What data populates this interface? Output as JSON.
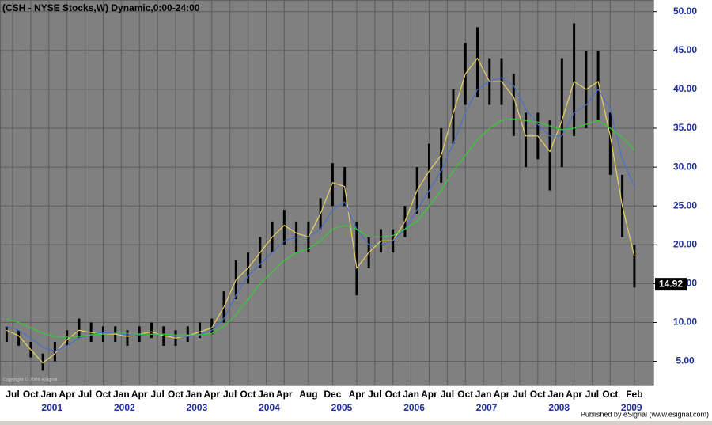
{
  "chart_data": {
    "type": "ohlc",
    "title": "(CSH - NYSE Stocks,W) Dynamic,0:00-24:00",
    "copyright": "Copyright © 2006 eSignal.",
    "footer": "Published by eSignal (www.esignal.com)",
    "x": [
      "2000-06",
      "2000-08",
      "2000-10",
      "2000-12",
      "2001-02",
      "2001-04",
      "2001-06",
      "2001-08",
      "2001-10",
      "2001-12",
      "2002-02",
      "2002-04",
      "2002-06",
      "2002-08",
      "2002-10",
      "2002-12",
      "2003-02",
      "2003-04",
      "2003-06",
      "2003-08",
      "2003-10",
      "2003-12",
      "2004-02",
      "2004-04",
      "2004-06",
      "2004-08",
      "2004-10",
      "2004-12",
      "2005-02",
      "2005-04",
      "2005-06",
      "2005-08",
      "2005-10",
      "2005-12",
      "2006-02",
      "2006-04",
      "2006-06",
      "2006-08",
      "2006-10",
      "2006-12",
      "2007-02",
      "2007-04",
      "2007-06",
      "2007-08",
      "2007-10",
      "2007-12",
      "2008-02",
      "2008-04",
      "2008-06",
      "2008-08",
      "2008-10",
      "2008-12",
      "2009-02"
    ],
    "low": [
      7.5,
      7,
      5.5,
      3.8,
      5,
      7,
      8,
      7.5,
      7.5,
      7.5,
      7,
      7.5,
      8,
      7,
      7,
      7.5,
      8,
      8.5,
      10,
      13,
      15,
      17,
      19,
      20,
      19,
      19,
      22,
      25,
      25,
      13.5,
      17,
      19,
      19,
      21,
      24,
      26,
      28,
      33,
      38,
      39,
      38,
      38,
      34,
      30,
      31,
      27,
      30,
      34,
      35,
      36,
      29,
      21,
      14.5
    ],
    "high": [
      9.5,
      9,
      7.5,
      6,
      7.5,
      9,
      10.5,
      10,
      9.5,
      9.5,
      9,
      9.5,
      10,
      9.5,
      9,
      9.5,
      10,
      10.5,
      14,
      18,
      19,
      21,
      23,
      24.5,
      23,
      23,
      26,
      30.5,
      30,
      23,
      21,
      22,
      22,
      25,
      30,
      33,
      35,
      40,
      46,
      48,
      44,
      44,
      42,
      37,
      37,
      36,
      44,
      48.5,
      45,
      45,
      37,
      29,
      20
    ],
    "bar_color": "#000000",
    "series": [
      {
        "color": "#e8d060",
        "values": [
          9,
          8.3,
          6.5,
          4.8,
          6,
          7.8,
          9,
          8.7,
          8.5,
          8.5,
          8.2,
          8.5,
          8.8,
          8.3,
          8,
          8.3,
          8.8,
          9.3,
          12,
          15.5,
          17,
          19,
          21,
          22.5,
          21.5,
          21,
          24,
          28,
          27.5,
          17,
          19,
          20.5,
          20.5,
          23,
          27,
          29.5,
          31.5,
          37,
          42,
          44,
          41,
          41,
          39,
          34,
          34,
          32,
          36,
          41,
          40,
          41,
          34,
          25,
          18.5
        ]
      },
      {
        "color": "#4a6fc8",
        "values": [
          9.5,
          9,
          8,
          6.8,
          6.3,
          7,
          8,
          8.5,
          8.7,
          8.6,
          8.4,
          8.4,
          8.5,
          8.5,
          8.2,
          8.2,
          8.5,
          9,
          10.5,
          13.5,
          16,
          17.5,
          19,
          20.5,
          21,
          21,
          22,
          24.5,
          25.5,
          22,
          20,
          20,
          20.5,
          22,
          24.5,
          27,
          29.5,
          33,
          37,
          40,
          41,
          41.5,
          40.5,
          37.5,
          35.5,
          34,
          34,
          37,
          38,
          40,
          37.5,
          31,
          27.5
        ]
      },
      {
        "color": "#30d030",
        "values": [
          10.5,
          10,
          9.3,
          8.6,
          8.2,
          8.1,
          8.2,
          8.4,
          8.5,
          8.6,
          8.6,
          8.5,
          8.5,
          8.5,
          8.4,
          8.4,
          8.4,
          8.6,
          9.5,
          11,
          13,
          15,
          16.5,
          18,
          19,
          19.5,
          20.5,
          22,
          22.5,
          22,
          21,
          21,
          21.2,
          22,
          23,
          25,
          27,
          29.5,
          31.5,
          33.5,
          35,
          36,
          36.2,
          36,
          35.8,
          35.3,
          34.8,
          35,
          35.5,
          36,
          35,
          33.8,
          32.2
        ]
      }
    ],
    "last_price": 14.92,
    "ylim": [
      1.9,
      51.5
    ],
    "yticks": [
      {
        "value": 5,
        "label": "5.00"
      },
      {
        "value": 10,
        "label": "10.00"
      },
      {
        "value": 15,
        "label": "15.00"
      },
      {
        "value": 20,
        "label": "20.00"
      },
      {
        "value": 25,
        "label": "25.00"
      },
      {
        "value": 30,
        "label": "30.00"
      },
      {
        "value": 35,
        "label": "35.00"
      },
      {
        "value": 40,
        "label": "40.00"
      },
      {
        "value": 45,
        "label": "45.00"
      },
      {
        "value": 50,
        "label": "50.00"
      }
    ],
    "xticks": [
      {
        "value": "2000-07",
        "label": "Jul"
      },
      {
        "value": "2000-10",
        "label": "Oct"
      },
      {
        "value": "2001-01",
        "label": "Jan"
      },
      {
        "value": "2001-04",
        "label": "Apr"
      },
      {
        "value": "2001-07",
        "label": "Jul"
      },
      {
        "value": "2001-10",
        "label": "Oct"
      },
      {
        "value": "2002-01",
        "label": "Jan"
      },
      {
        "value": "2002-04",
        "label": "Apr"
      },
      {
        "value": "2002-07",
        "label": "Jul"
      },
      {
        "value": "2002-10",
        "label": "Oct"
      },
      {
        "value": "2003-01",
        "label": "Jan"
      },
      {
        "value": "2003-04",
        "label": "Apr"
      },
      {
        "value": "2003-07",
        "label": "Jul"
      },
      {
        "value": "2003-10",
        "label": "Oct"
      },
      {
        "value": "2004-01",
        "label": "Jan"
      },
      {
        "value": "2004-04",
        "label": "Apr"
      },
      {
        "value": "2004-08",
        "label": "Aug"
      },
      {
        "value": "2004-12",
        "label": "Dec"
      },
      {
        "value": "2005-04",
        "label": "Apr"
      },
      {
        "value": "2005-07",
        "label": "Jul"
      },
      {
        "value": "2005-10",
        "label": "Oct"
      },
      {
        "value": "2006-01",
        "label": "Jan"
      },
      {
        "value": "2006-04",
        "label": "Apr"
      },
      {
        "value": "2006-07",
        "label": "Jul"
      },
      {
        "value": "2006-10",
        "label": "Oct"
      },
      {
        "value": "2007-01",
        "label": "Jan"
      },
      {
        "value": "2007-04",
        "label": "Apr"
      },
      {
        "value": "2007-07",
        "label": "Jul"
      },
      {
        "value": "2007-10",
        "label": "Oct"
      },
      {
        "value": "2008-01",
        "label": "Jan"
      },
      {
        "value": "2008-04",
        "label": "Apr"
      },
      {
        "value": "2008-07",
        "label": "Jul"
      },
      {
        "value": "2008-10",
        "label": "Oct"
      },
      {
        "value": "2009-02",
        "label": "Feb"
      }
    ],
    "year_labels": [
      {
        "value": "2001-01",
        "label": "2001"
      },
      {
        "value": "2002-01",
        "label": "2002"
      },
      {
        "value": "2003-01",
        "label": "2003"
      },
      {
        "value": "2004-01",
        "label": "2004"
      },
      {
        "value": "2005-01",
        "label": "2005"
      },
      {
        "value": "2006-01",
        "label": "2006"
      },
      {
        "value": "2007-01",
        "label": "2007"
      },
      {
        "value": "2008-01",
        "label": "2008"
      },
      {
        "value": "2009-01",
        "label": "2009"
      }
    ],
    "grid": true
  }
}
